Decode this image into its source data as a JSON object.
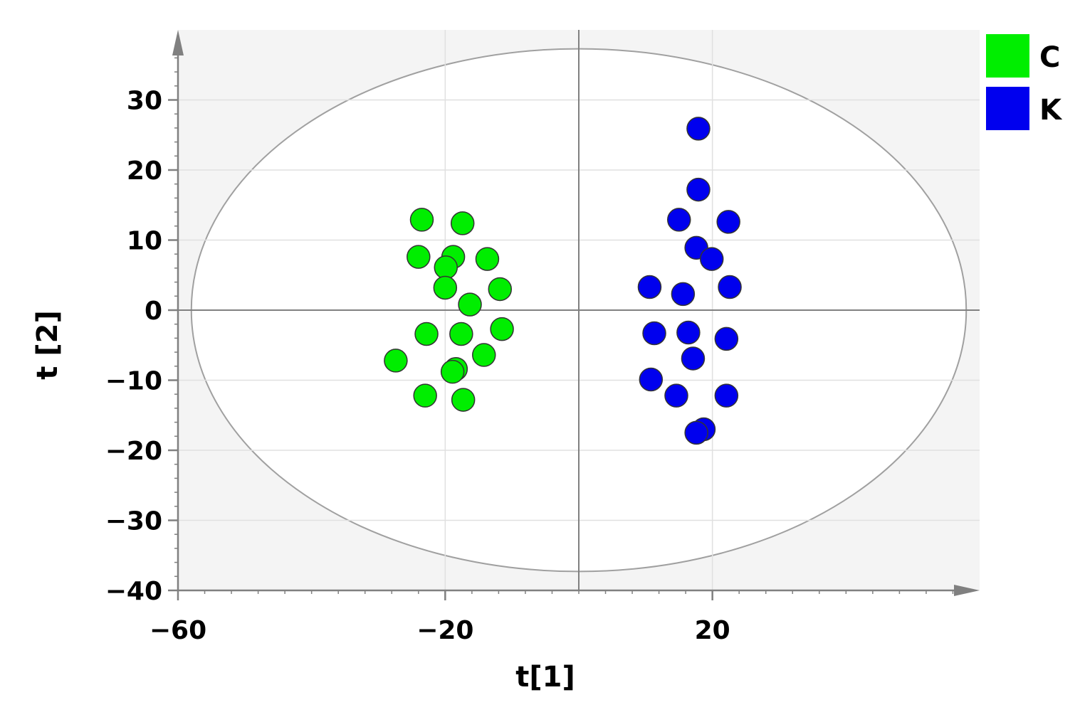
{
  "chart_data": {
    "type": "scatter",
    "xlabel": "t[1]",
    "ylabel": "t [2]",
    "xlim": [
      -60,
      60
    ],
    "ylim": [
      -40,
      40
    ],
    "x_ticks": [
      -60,
      -20,
      20
    ],
    "y_ticks": [
      30,
      20,
      10,
      0,
      -10,
      -20,
      -30,
      -40
    ],
    "x_tick_labels": [
      "−60",
      "−20",
      "20"
    ],
    "y_tick_labels": [
      "30",
      "20",
      "10",
      "0",
      "−10",
      "−20",
      "−30",
      "−40"
    ],
    "grid": true,
    "hotelling_ellipse": {
      "center": [
        0,
        0
      ],
      "semi_axis_x": 58,
      "semi_axis_y": 37.3
    },
    "legend_position": "top-right",
    "series": [
      {
        "name": "C",
        "color": "#00EE00",
        "points": [
          [
            -23.5,
            12.9
          ],
          [
            -17.4,
            12.4
          ],
          [
            -24.0,
            7.6
          ],
          [
            -18.8,
            7.6
          ],
          [
            -13.7,
            7.3
          ],
          [
            -19.9,
            6.1
          ],
          [
            -20.0,
            3.2
          ],
          [
            -11.8,
            3.0
          ],
          [
            -16.3,
            0.8
          ],
          [
            -22.8,
            -3.4
          ],
          [
            -17.6,
            -3.4
          ],
          [
            -11.5,
            -2.7
          ],
          [
            -14.2,
            -6.4
          ],
          [
            -27.4,
            -7.2
          ],
          [
            -18.4,
            -8.4
          ],
          [
            -18.9,
            -8.8
          ],
          [
            -23.0,
            -12.2
          ],
          [
            -17.3,
            -12.8
          ]
        ]
      },
      {
        "name": "K",
        "color": "#0000EE",
        "points": [
          [
            17.9,
            25.9
          ],
          [
            17.9,
            17.2
          ],
          [
            15.0,
            12.9
          ],
          [
            22.4,
            12.6
          ],
          [
            17.6,
            8.9
          ],
          [
            19.9,
            7.3
          ],
          [
            10.6,
            3.3
          ],
          [
            22.6,
            3.3
          ],
          [
            15.6,
            2.3
          ],
          [
            11.3,
            -3.3
          ],
          [
            16.4,
            -3.2
          ],
          [
            22.1,
            -4.1
          ],
          [
            17.1,
            -6.9
          ],
          [
            10.8,
            -9.9
          ],
          [
            14.6,
            -12.2
          ],
          [
            22.1,
            -12.2
          ],
          [
            18.7,
            -17.0
          ],
          [
            17.6,
            -17.5
          ]
        ]
      }
    ]
  },
  "colors": {
    "plot_background": "#F4F4F4",
    "ellipse_fill": "#FFFFFF",
    "ellipse_stroke": "#A0A0A0",
    "grid": "#E0E0E0",
    "zero_line": "#808080",
    "axis": "#808080",
    "marker_stroke": "#333333"
  }
}
